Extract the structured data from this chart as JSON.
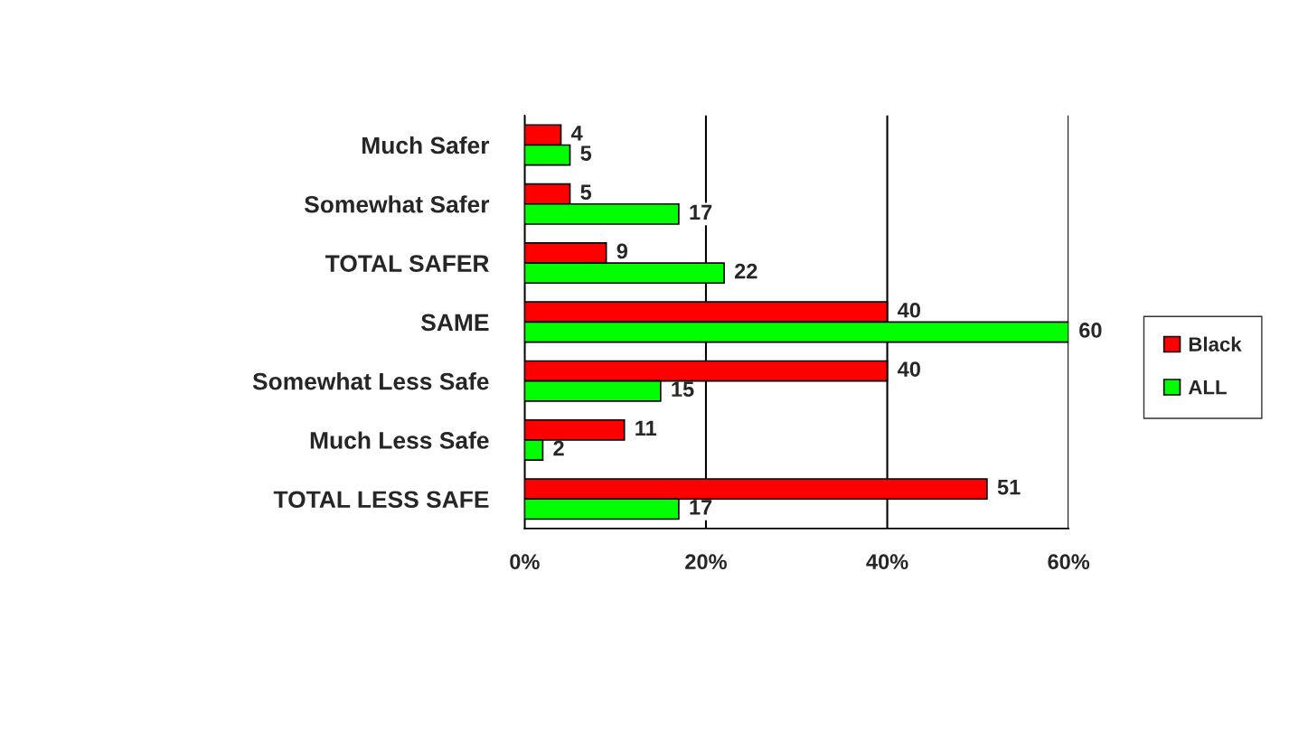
{
  "chart_data": {
    "type": "bar",
    "orientation": "horizontal",
    "categories": [
      "Much Safer",
      "Somewhat Safer",
      "TOTAL SAFER",
      "SAME",
      "Somewhat Less Safe",
      "Much Less Safe",
      "TOTAL LESS SAFE"
    ],
    "series": [
      {
        "name": "Black",
        "color": "#ff0000",
        "values": [
          4,
          5,
          9,
          40,
          40,
          11,
          51
        ]
      },
      {
        "name": "ALL",
        "color": "#00ff00",
        "values": [
          5,
          17,
          22,
          60,
          15,
          2,
          17
        ]
      }
    ],
    "xlim": [
      0,
      60
    ],
    "xticks": [
      {
        "value": 0,
        "label": "0%"
      },
      {
        "value": 20,
        "label": "20%"
      },
      {
        "value": 40,
        "label": "40%"
      },
      {
        "value": 60,
        "label": "60%"
      }
    ],
    "grid": "x",
    "legend": "right",
    "data_labels": true
  }
}
